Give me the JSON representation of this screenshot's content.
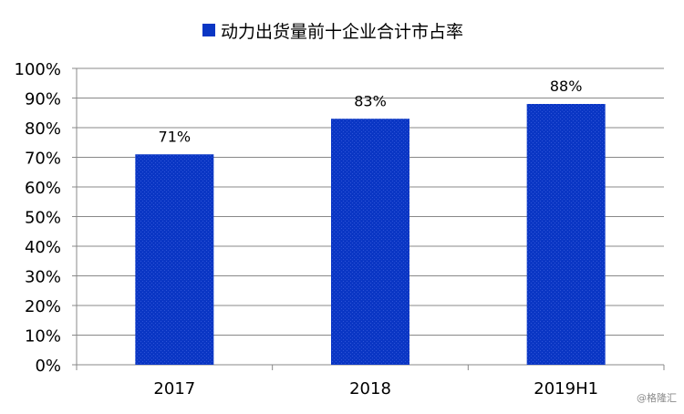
{
  "chart_data": {
    "type": "bar",
    "title": "",
    "legend": {
      "label": "动力出货量前十企业合计市占率",
      "position": "top"
    },
    "categories": [
      "2017",
      "2018",
      "2019H1"
    ],
    "series": [
      {
        "name": "动力出货量前十企业合计市占率",
        "values": [
          71,
          83,
          88
        ],
        "labels": [
          "71%",
          "83%",
          "88%"
        ]
      }
    ],
    "y_ticks": [
      "0%",
      "10%",
      "20%",
      "30%",
      "40%",
      "50%",
      "60%",
      "70%",
      "80%",
      "90%",
      "100%"
    ],
    "ylim": [
      0,
      100
    ],
    "unit": "%",
    "grid": true,
    "bar_color": "#0a36c4",
    "grid_color": "#888888"
  },
  "watermark": "@格隆汇"
}
